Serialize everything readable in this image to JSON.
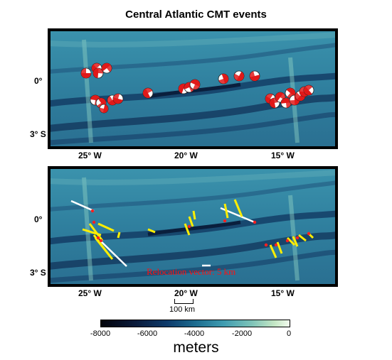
{
  "title": "Central Atlantic CMT events",
  "lat_labels": [
    "0°",
    "3° S"
  ],
  "lon_labels": [
    "25° W",
    "20° W",
    "15° W"
  ],
  "scale_label": "100 km",
  "relocation_label": "Relocation vector: 5 km",
  "colorbar": {
    "ticks": [
      "-8000",
      "-6000",
      "-4000",
      "-2000",
      "0"
    ],
    "units": "meters",
    "colors": [
      "#02030a",
      "#0d3a6a",
      "#1d6c8f",
      "#7ec3b8",
      "#f2fbee"
    ]
  }
}
